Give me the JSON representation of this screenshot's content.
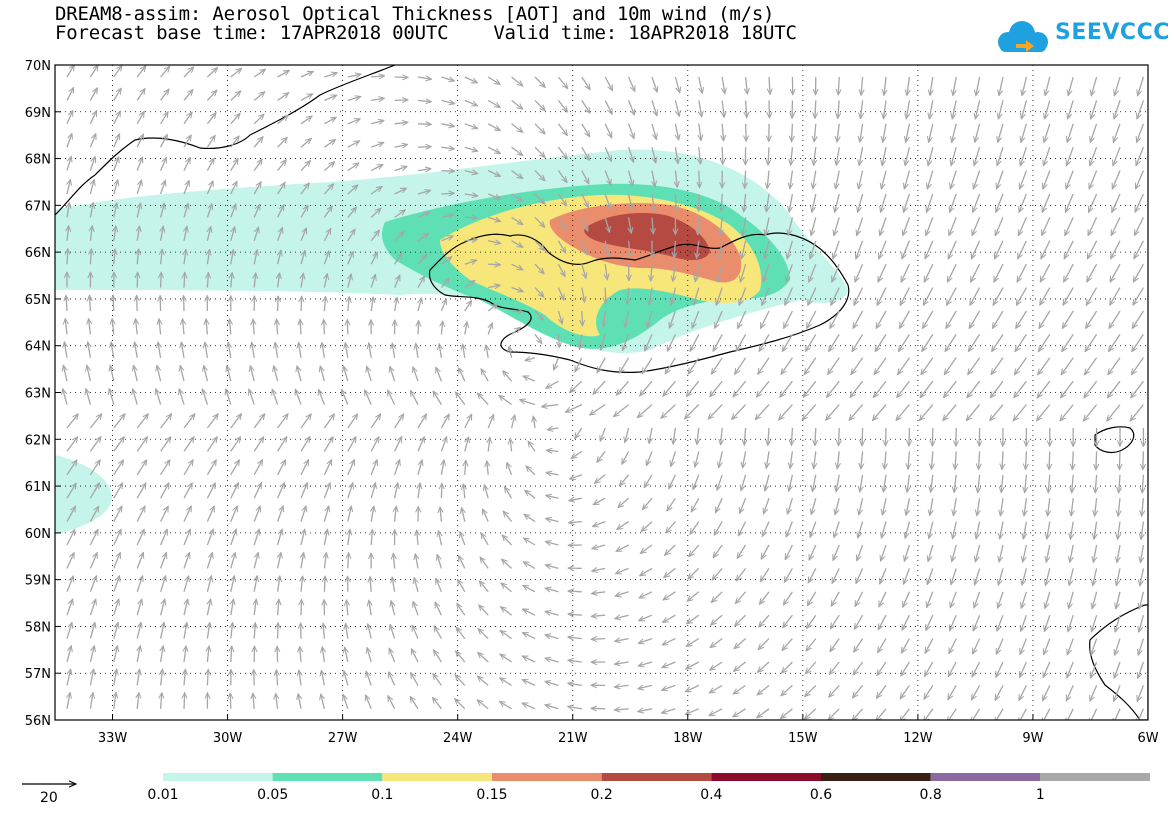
{
  "header": {
    "title_line1": "DREAM8-assim: Aerosol Optical Thickness [AOT] and 10m wind (m/s)",
    "title_line2": "Forecast base time: 17APR2018 00UTC    Valid time: 18APR2018 18UTC",
    "logo_text": "SEEVCCC",
    "logo_color": "#1fa0df"
  },
  "map": {
    "lat_labels": [
      "70N",
      "69N",
      "68N",
      "67N",
      "66N",
      "65N",
      "64N",
      "63N",
      "62N",
      "61N",
      "60N",
      "59N",
      "58N",
      "57N",
      "56N"
    ],
    "lon_labels": [
      "33W",
      "30W",
      "27W",
      "24W",
      "21W",
      "18W",
      "15W",
      "12W",
      "9W",
      "6W"
    ],
    "lat_range": [
      56,
      70
    ],
    "lon_range": [
      -34.5,
      -6
    ],
    "grid": true,
    "wind_arrow_color": "#a6a6a6",
    "coast_color": "#000000"
  },
  "legend": {
    "reference_vector_value": "20",
    "levels": [
      "0.01",
      "0.05",
      "0.1",
      "0.15",
      "0.2",
      "0.4",
      "0.6",
      "0.8",
      "1"
    ],
    "colors": [
      "#c4f4ea",
      "#5fe0b4",
      "#f7e67a",
      "#ea8d6d",
      "#b44a42",
      "#8c0a2a",
      "#3a1f14",
      "#8a6aa0",
      "#a8a8a8"
    ]
  }
}
